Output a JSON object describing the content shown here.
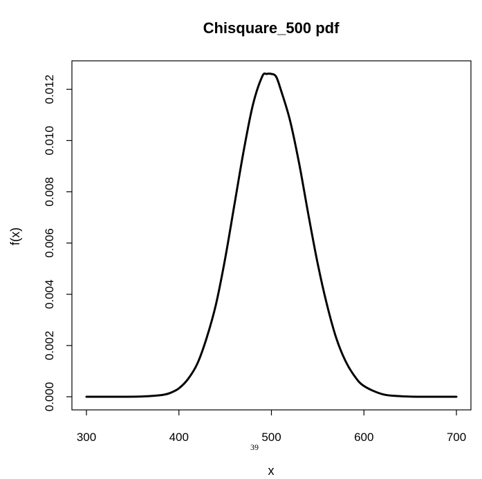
{
  "page_number": "39",
  "chart_data": {
    "type": "line",
    "title": "Chisquare_500 pdf",
    "xlabel": "x",
    "ylabel": "f(x)",
    "xlim": [
      300,
      700
    ],
    "ylim": [
      0,
      0.0126
    ],
    "x_ticks": [
      300,
      400,
      500,
      600,
      700
    ],
    "x_tick_labels": [
      "300",
      "400",
      "500",
      "600",
      "700"
    ],
    "y_ticks": [
      0,
      0.002,
      0.004,
      0.006,
      0.008,
      0.01,
      0.012
    ],
    "y_tick_labels": [
      "0.000",
      "0.002",
      "0.004",
      "0.006",
      "0.008",
      "0.010",
      "0.012"
    ],
    "grid": false,
    "series": [
      {
        "x": [
          300,
          320,
          340,
          360,
          380,
          390,
          400,
          410,
          420,
          430,
          440,
          450,
          460,
          470,
          480,
          490,
          495,
          500,
          505,
          510,
          520,
          530,
          540,
          550,
          560,
          570,
          580,
          590,
          600,
          620,
          640,
          660,
          680,
          700
        ],
        "values": [
          0.0,
          0.0,
          0.0,
          1e-05,
          6e-05,
          0.00014,
          0.00033,
          0.0007,
          0.0013,
          0.0023,
          0.0036,
          0.0054,
          0.0075,
          0.0096,
          0.0114,
          0.0125,
          0.0126,
          0.0126,
          0.0125,
          0.012,
          0.0108,
          0.0091,
          0.0071,
          0.0052,
          0.0036,
          0.0023,
          0.0014,
          0.0008,
          0.00042,
          0.0001,
          2e-05,
          0.0,
          0.0,
          0.0
        ]
      }
    ]
  }
}
